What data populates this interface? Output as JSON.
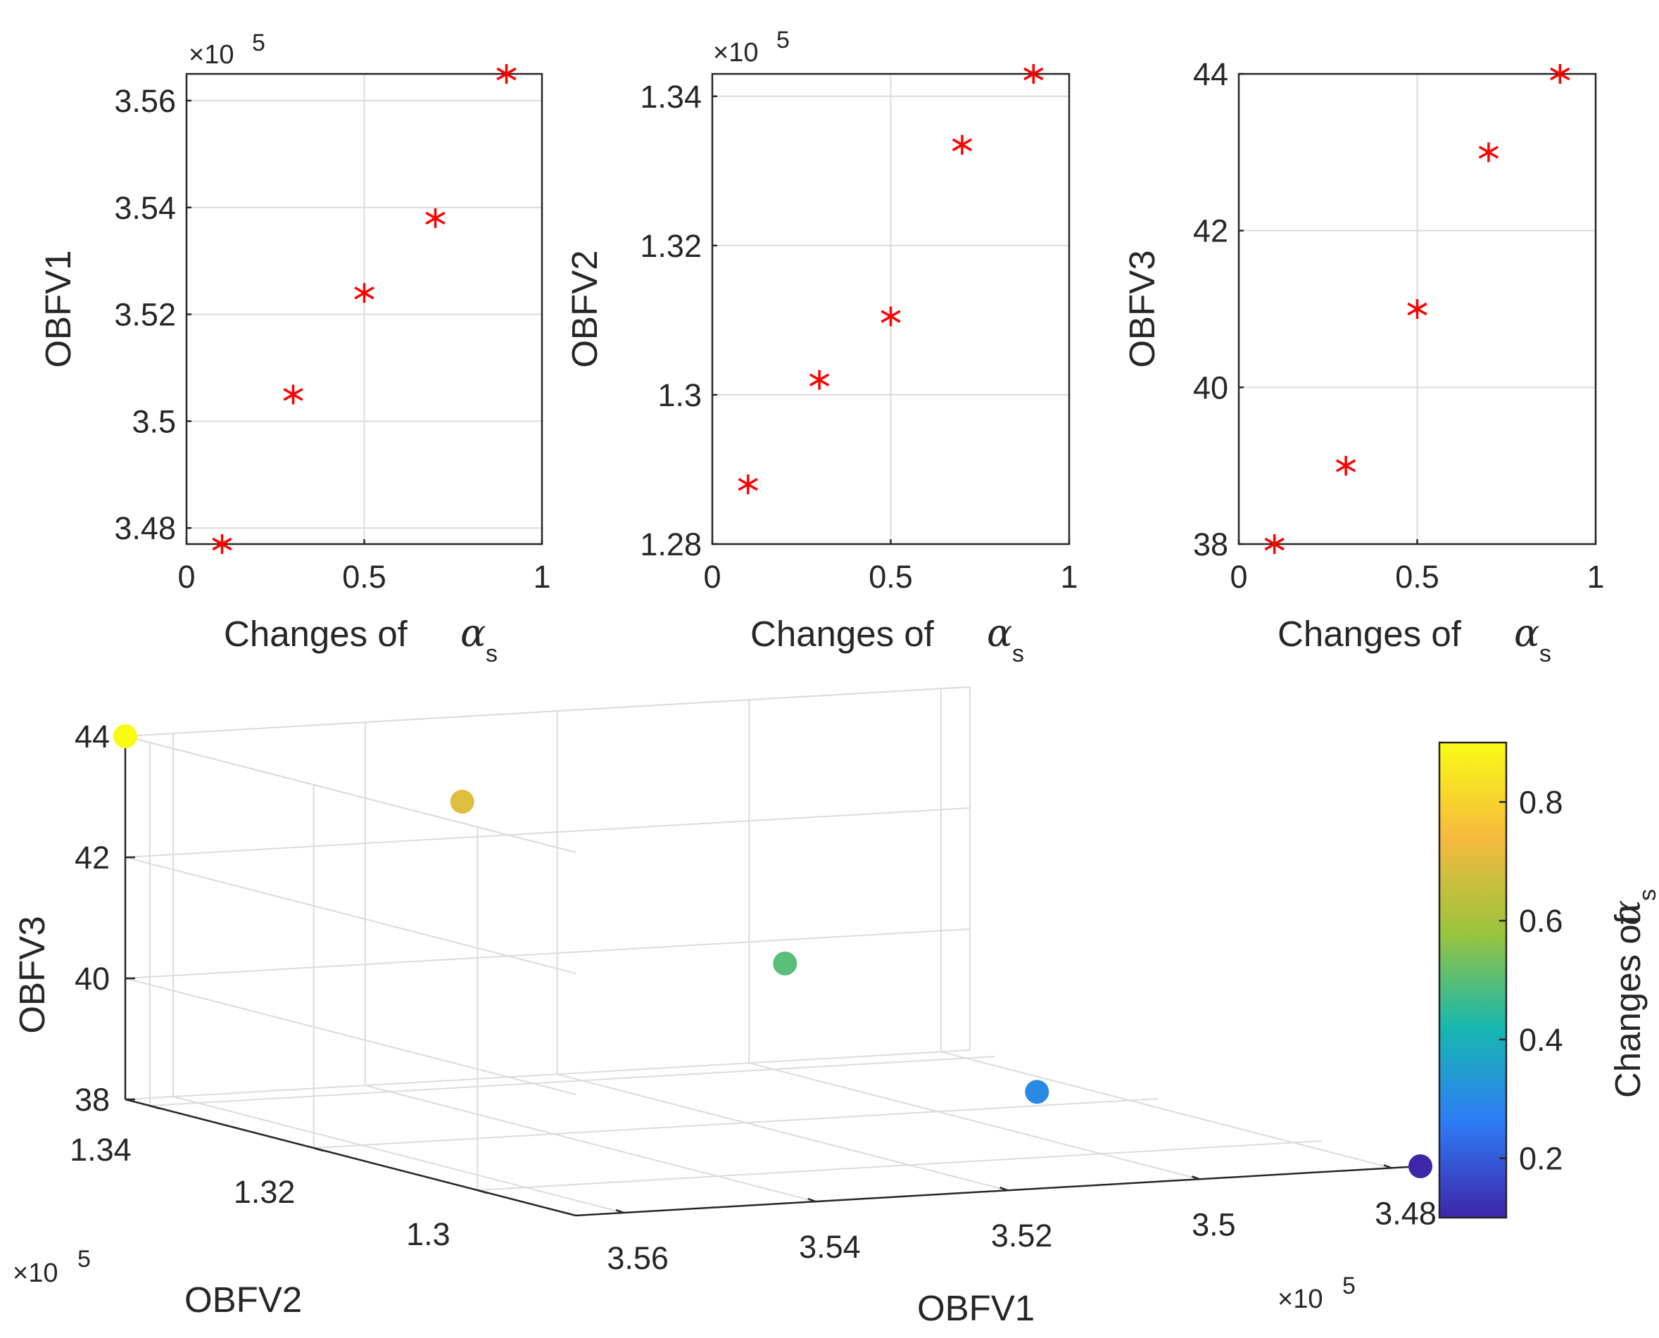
{
  "chart_data": [
    {
      "type": "scatter",
      "panel": "top-left",
      "xlabel_text": "Changes of",
      "xlabel_symbol": "α",
      "xlabel_subscript": "s",
      "ylabel": "OBFV1",
      "y_multiplier": "×10",
      "y_multiplier_exp": "5",
      "xlim": [
        0,
        1
      ],
      "ylim": [
        3.477,
        3.565
      ],
      "xticks": [
        0,
        0.5,
        1
      ],
      "xtick_labels": [
        "0",
        "0.5",
        "1"
      ],
      "yticks": [
        3.48,
        3.5,
        3.52,
        3.54,
        3.56
      ],
      "ytick_labels": [
        "3.48",
        "3.5",
        "3.52",
        "3.54",
        "3.56"
      ],
      "x": [
        0.1,
        0.3,
        0.5,
        0.7,
        0.9
      ],
      "y": [
        3.477,
        3.505,
        3.524,
        3.538,
        3.565
      ],
      "marker": "*",
      "color": "#ff0000",
      "grid": true
    },
    {
      "type": "scatter",
      "panel": "top-middle",
      "xlabel_text": "Changes of",
      "xlabel_symbol": "α",
      "xlabel_subscript": "s",
      "ylabel": "OBFV2",
      "y_multiplier": "×10",
      "y_multiplier_exp": "5",
      "xlim": [
        0,
        1
      ],
      "ylim": [
        1.28,
        1.343
      ],
      "xticks": [
        0,
        0.5,
        1
      ],
      "xtick_labels": [
        "0",
        "0.5",
        "1"
      ],
      "yticks": [
        1.28,
        1.3,
        1.32,
        1.34
      ],
      "ytick_labels": [
        "1.28",
        "1.3",
        "1.32",
        "1.34"
      ],
      "x": [
        0.1,
        0.3,
        0.5,
        0.7,
        0.9
      ],
      "y": [
        1.288,
        1.302,
        1.3105,
        1.3335,
        1.343
      ],
      "marker": "*",
      "color": "#ff0000",
      "grid": true
    },
    {
      "type": "scatter",
      "panel": "top-right",
      "xlabel_text": "Changes of",
      "xlabel_symbol": "α",
      "xlabel_subscript": "s",
      "ylabel": "OBFV3",
      "xlim": [
        0,
        1
      ],
      "ylim": [
        38,
        44
      ],
      "xticks": [
        0,
        0.5,
        1
      ],
      "xtick_labels": [
        "0",
        "0.5",
        "1"
      ],
      "yticks": [
        38,
        40,
        42,
        44
      ],
      "ytick_labels": [
        "38",
        "40",
        "42",
        "44"
      ],
      "x": [
        0.1,
        0.3,
        0.5,
        0.7,
        0.9
      ],
      "y": [
        38,
        39,
        41,
        43,
        44
      ],
      "marker": "*",
      "color": "#ff0000",
      "grid": true
    },
    {
      "type": "scatter3d",
      "panel": "bottom",
      "xlabel": "OBFV1",
      "ylabel": "OBFV2",
      "zlabel": "OBFV3",
      "x_multiplier": "×10",
      "x_multiplier_exp": "5",
      "y_multiplier": "×10",
      "y_multiplier_exp": "5",
      "xlim": [
        3.477,
        3.565
      ],
      "ylim": [
        1.288,
        1.343
      ],
      "zlim": [
        38,
        44
      ],
      "xticks": [
        3.48,
        3.5,
        3.52,
        3.54,
        3.56
      ],
      "xtick_labels": [
        "3.48",
        "3.5",
        "3.52",
        "3.54",
        "3.56"
      ],
      "yticks": [
        1.3,
        1.32,
        1.34
      ],
      "ytick_labels": [
        "1.3",
        "1.32",
        "1.34"
      ],
      "zticks": [
        38,
        40,
        42,
        44
      ],
      "ztick_labels": [
        "38",
        "40",
        "42",
        "44"
      ],
      "points": [
        {
          "x": 3.477,
          "y": 1.288,
          "z": 38,
          "c": 0.1
        },
        {
          "x": 3.505,
          "y": 1.302,
          "z": 39,
          "c": 0.3
        },
        {
          "x": 3.524,
          "y": 1.3105,
          "z": 41,
          "c": 0.5
        },
        {
          "x": 3.538,
          "y": 1.3335,
          "z": 43,
          "c": 0.7
        },
        {
          "x": 3.565,
          "y": 1.343,
          "z": 44,
          "c": 0.9
        }
      ],
      "colorbar": {
        "label_text": "Changes of",
        "label_symbol": "α",
        "label_subscript": "s",
        "range": [
          0.1,
          0.9
        ],
        "ticks": [
          0.2,
          0.4,
          0.6,
          0.8
        ],
        "tick_labels": [
          "0.2",
          "0.4",
          "0.6",
          "0.8"
        ],
        "colormap": [
          "#3e26a8",
          "#2e7bf6",
          "#17b7b0",
          "#9bc43d",
          "#f6ba3e",
          "#f9fb15"
        ]
      },
      "grid": true
    }
  ]
}
